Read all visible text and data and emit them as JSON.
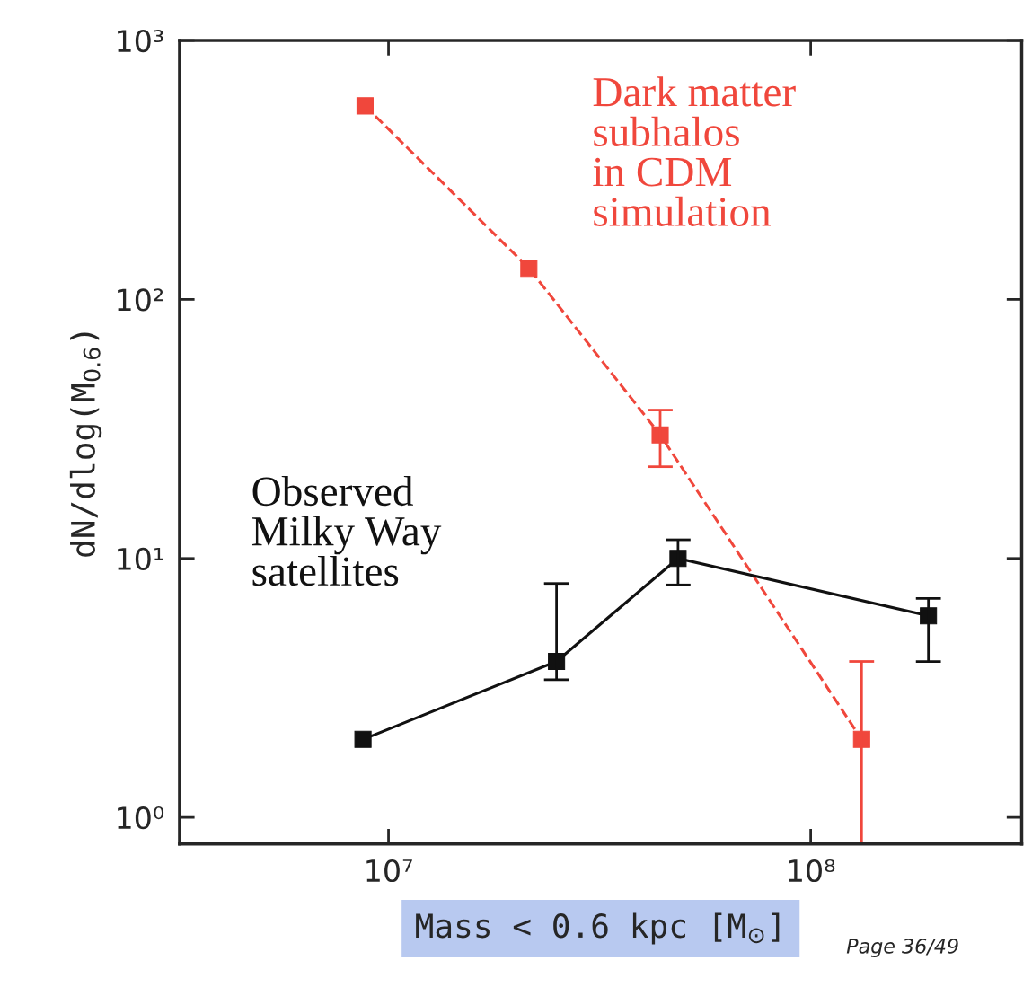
{
  "chart_data": {
    "type": "line",
    "xlabel": "Mass < 0.6 kpc [M$_{⊙}$]",
    "ylabel": "dN/dlog(M$_{0.6}$)",
    "log": "xy",
    "xlim": [
      3200000.0,
      316000000.0
    ],
    "ylim": [
      0.79,
      1000
    ],
    "xticks": [
      {
        "value": 10000000.0,
        "label": "10⁷"
      },
      {
        "value": 100000000.0,
        "label": "10⁸"
      }
    ],
    "yticks": [
      {
        "value": 1,
        "label": "10⁰"
      },
      {
        "value": 10,
        "label": "10¹"
      },
      {
        "value": 100,
        "label": "10²"
      },
      {
        "value": 1000,
        "label": "10³"
      }
    ],
    "grid": false,
    "legend": false,
    "marker": "square",
    "series": [
      {
        "name": "Dark matter\nsubhalos\nin CDM\nsimulation",
        "color": "#f0473c",
        "line_style": "dashed",
        "x": [
          8800000.0,
          21500000.0,
          44000000.0,
          132000000.0
        ],
        "values": [
          559,
          132,
          30,
          2.0
        ],
        "errors": [
          null,
          null,
          [
            22.6,
            37.4
          ],
          [
            0.79,
            4.0
          ]
        ]
      },
      {
        "name": "Observed\nMilky Way\nsatellites",
        "color": "#111111",
        "line_style": "solid",
        "x": [
          8700000.0,
          25000000.0,
          48500000.0,
          190000000.0
        ],
        "values": [
          2.0,
          4.0,
          10,
          6.0
        ],
        "errors": [
          null,
          [
            3.4,
            8.0
          ],
          [
            7.9,
            11.8
          ],
          [
            4.0,
            7.0
          ]
        ]
      }
    ],
    "annotations": [
      "Page 36/49"
    ]
  }
}
